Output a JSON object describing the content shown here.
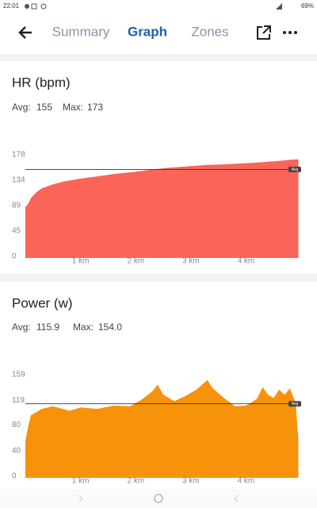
{
  "status_bar": {
    "time": "22:01",
    "battery": "69%"
  },
  "nav": {
    "tabs": [
      "Summary",
      "Graph",
      "Zones"
    ],
    "active_tab": 1
  },
  "chart_data": [
    {
      "type": "area",
      "title": "HR (bpm)",
      "stats": {
        "avg_label": "Avg:",
        "avg": 155,
        "max_label": "Max:",
        "max": 173
      },
      "avg_line_label": "Avg",
      "x": [
        0,
        0.05,
        0.1,
        0.2,
        0.3,
        0.5,
        0.7,
        1,
        1.3,
        1.6,
        2,
        2.3,
        2.6,
        3,
        3.3,
        3.6,
        4,
        4.3,
        4.6,
        4.8,
        4.95
      ],
      "values": [
        89,
        95,
        105,
        115,
        122,
        129,
        134,
        139,
        143,
        147,
        151,
        155,
        158,
        161,
        163,
        164,
        166,
        168,
        170,
        172,
        173
      ],
      "color": "#fa6459",
      "xlim": [
        0,
        5
      ],
      "ylim": [
        0,
        178
      ],
      "xticks": [
        {
          "value": 1,
          "label": "1 km"
        },
        {
          "value": 2,
          "label": "2 km"
        },
        {
          "value": 3,
          "label": "3 km"
        },
        {
          "value": 4,
          "label": "4 km"
        }
      ],
      "yticks": [
        0,
        45,
        89,
        134,
        178
      ]
    },
    {
      "type": "area",
      "title": "Power (w)",
      "stats": {
        "avg_label": "Avg:",
        "avg": 115.9,
        "max_label": "Max:",
        "max": {
          "value": 154,
          "label": "154.0"
        }
      },
      "avg_line_label": "Avg",
      "x": [
        0,
        0.05,
        0.1,
        0.3,
        0.5,
        0.8,
        1,
        1.3,
        1.6,
        1.9,
        2.1,
        2.3,
        2.4,
        2.5,
        2.7,
        2.9,
        3.1,
        3.3,
        3.4,
        3.6,
        3.8,
        4,
        4.1,
        4.2,
        4.3,
        4.4,
        4.5,
        4.6,
        4.7,
        4.8,
        4.85,
        4.9,
        4.95
      ],
      "values": [
        58,
        80,
        98,
        108,
        112,
        105,
        110,
        108,
        113,
        112,
        122,
        135,
        146,
        130,
        120,
        128,
        138,
        153,
        140,
        125,
        112,
        113,
        118,
        124,
        142,
        130,
        125,
        138,
        130,
        140,
        128,
        118,
        60
      ],
      "color": "#f7930a",
      "xlim": [
        0,
        5
      ],
      "ylim": [
        0,
        159
      ],
      "xticks": [
        {
          "value": 1,
          "label": "1 km"
        },
        {
          "value": 2,
          "label": "2 km"
        },
        {
          "value": 3,
          "label": "3 km"
        },
        {
          "value": 4,
          "label": "4 km"
        }
      ],
      "yticks": [
        0,
        40,
        80,
        119,
        159
      ]
    }
  ]
}
